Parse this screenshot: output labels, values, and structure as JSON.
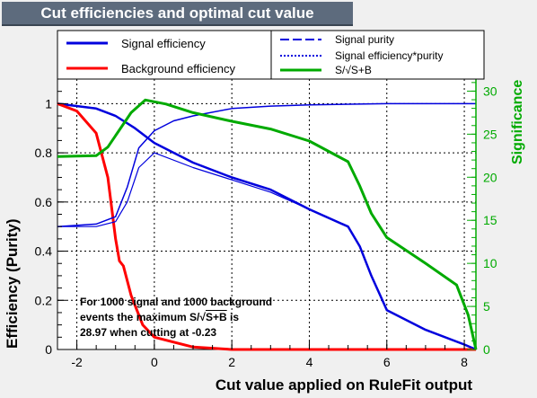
{
  "chart_data": {
    "type": "line",
    "title": "Cut efficiencies and optimal cut value",
    "xlabel": "Cut value applied on RuleFit output",
    "ylabel": "Efficiency (Purity)",
    "y2label": "Significance",
    "xlim": [
      -2.5,
      8.3
    ],
    "ylim": [
      0,
      1.1
    ],
    "y2lim": [
      0,
      31.4
    ],
    "xticks": [
      "-2",
      "0",
      "2",
      "4",
      "6",
      "8"
    ],
    "yticks": [
      "0",
      "0.2",
      "0.4",
      "0.6",
      "0.8",
      "1"
    ],
    "y2ticks": [
      "0",
      "5",
      "10",
      "15",
      "20",
      "25",
      "30"
    ],
    "grid": true,
    "legend": [
      {
        "name": "Signal efficiency",
        "color": "#0000dd",
        "style": "solid"
      },
      {
        "name": "Background efficiency",
        "color": "#ff0000",
        "style": "solid"
      },
      {
        "name": "Signal purity",
        "color": "#0000dd",
        "style": "dashed"
      },
      {
        "name": "Signal efficiency*purity",
        "color": "#0000dd",
        "style": "dotted"
      },
      {
        "name": "S/√S+B",
        "color": "#00aa00",
        "style": "solid"
      }
    ],
    "annotation": {
      "line1": "For 1000 signal and 1000 background",
      "line2_a": "events the maximum S/",
      "line2_b": "S+B",
      "line2_c": " is",
      "line3": "28.97 when cutting at -0.23"
    },
    "series": [
      {
        "name": "Signal efficiency",
        "axis": "left",
        "x": [
          -2.5,
          -1.5,
          -1.0,
          -0.5,
          0.0,
          1.0,
          2.0,
          3.0,
          4.0,
          5.0,
          5.3,
          5.6,
          6.0,
          7.0,
          8.0,
          8.3
        ],
        "y": [
          1.0,
          0.98,
          0.95,
          0.9,
          0.84,
          0.76,
          0.7,
          0.65,
          0.57,
          0.5,
          0.42,
          0.3,
          0.16,
          0.08,
          0.02,
          0.0
        ]
      },
      {
        "name": "Background efficiency",
        "axis": "left",
        "x": [
          -2.5,
          -2.0,
          -1.5,
          -1.2,
          -1.0,
          -0.9,
          -0.8,
          -0.6,
          -0.3,
          0.0,
          0.5,
          1.0,
          2.0,
          4.0,
          8.3
        ],
        "y": [
          1.0,
          0.97,
          0.88,
          0.7,
          0.45,
          0.36,
          0.34,
          0.22,
          0.1,
          0.05,
          0.03,
          0.01,
          0.0,
          0.0,
          0.0
        ]
      },
      {
        "name": "Signal purity",
        "axis": "left",
        "x": [
          -2.5,
          -1.5,
          -1.0,
          -0.7,
          -0.4,
          0.0,
          0.5,
          1.0,
          2.0,
          3.0,
          4.0,
          6.0,
          8.3
        ],
        "y": [
          0.5,
          0.51,
          0.54,
          0.66,
          0.82,
          0.89,
          0.93,
          0.95,
          0.98,
          0.99,
          0.995,
          1.0,
          1.0
        ]
      },
      {
        "name": "Signal efficiency*purity",
        "axis": "left",
        "x": [
          -2.5,
          -1.5,
          -1.0,
          -0.7,
          -0.4,
          0.0,
          1.0,
          2.0,
          3.0,
          4.0,
          5.0,
          5.3,
          5.6,
          6.0,
          7.0,
          8.0,
          8.3
        ],
        "y": [
          0.5,
          0.5,
          0.52,
          0.6,
          0.74,
          0.8,
          0.74,
          0.69,
          0.64,
          0.57,
          0.5,
          0.42,
          0.3,
          0.16,
          0.08,
          0.02,
          0.0
        ]
      },
      {
        "name": "S/√S+B",
        "axis": "right",
        "x": [
          -2.5,
          -1.5,
          -1.2,
          -0.9,
          -0.6,
          -0.23,
          0.3,
          1.0,
          2.0,
          3.0,
          4.0,
          5.0,
          5.3,
          5.6,
          6.0,
          7.0,
          7.8,
          8.1,
          8.3
        ],
        "y": [
          22.4,
          22.5,
          23.5,
          25.5,
          27.5,
          28.97,
          28.5,
          27.5,
          26.5,
          25.6,
          24.2,
          21.8,
          19.0,
          15.8,
          13.0,
          10.0,
          7.5,
          4.0,
          0.0
        ]
      }
    ]
  }
}
